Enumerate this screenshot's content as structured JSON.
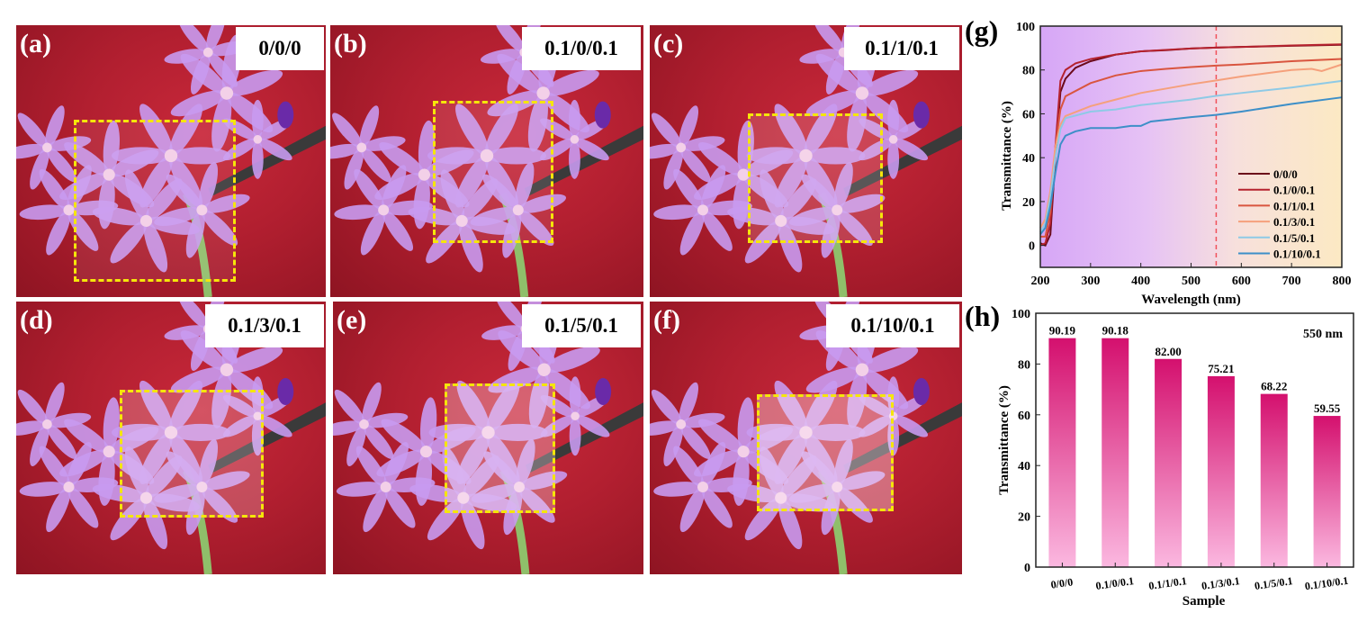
{
  "panels": [
    {
      "label": "(a)",
      "sample": "0/0/0",
      "film_opacity": 0.08
    },
    {
      "label": "(b)",
      "sample": "0.1/0/0.1",
      "film_opacity": 0.1
    },
    {
      "label": "(c)",
      "sample": "0.1/1/0.1",
      "film_opacity": 0.16
    },
    {
      "label": "(d)",
      "sample": "0.1/3/0.1",
      "film_opacity": 0.22
    },
    {
      "label": "(e)",
      "sample": "0.1/5/0.1",
      "film_opacity": 0.3
    },
    {
      "label": "(f)",
      "sample": "0.1/10/0.1",
      "film_opacity": 0.38
    }
  ],
  "colors": {
    "dashed_box": "#f5e60a",
    "reference_line": "#f0505a",
    "bar_top": "#d4106e",
    "bar_bottom": "#fbb8e0"
  },
  "chart_data": [
    {
      "panel_label": "(g)",
      "type": "line",
      "xlabel": "Wavelength (nm)",
      "ylabel": "Transmittance (%)",
      "xlim": [
        200,
        800
      ],
      "ylim": [
        -10,
        100
      ],
      "xticks": [
        200,
        300,
        400,
        500,
        600,
        700,
        800
      ],
      "yticks": [
        0,
        20,
        40,
        60,
        80,
        100
      ],
      "reference_line_x": 550,
      "legend_position": "bottom-right",
      "background": "purple-to-yellow gradient",
      "series": [
        {
          "name": "0/0/0",
          "color": "#6b0a1a",
          "points": [
            [
              200,
              1
            ],
            [
              210,
              0
            ],
            [
              220,
              5
            ],
            [
              230,
              40
            ],
            [
              240,
              70
            ],
            [
              250,
              76
            ],
            [
              270,
              81
            ],
            [
              300,
              84
            ],
            [
              350,
              87
            ],
            [
              400,
              88.5
            ],
            [
              450,
              89
            ],
            [
              500,
              89.8
            ],
            [
              550,
              90.2
            ],
            [
              600,
              90.5
            ],
            [
              700,
              91
            ],
            [
              800,
              91.5
            ]
          ]
        },
        {
          "name": "0.1/0/0.1",
          "color": "#b5222e",
          "points": [
            [
              200,
              0
            ],
            [
              210,
              1
            ],
            [
              220,
              10
            ],
            [
              230,
              45
            ],
            [
              240,
              75
            ],
            [
              250,
              80
            ],
            [
              270,
              83
            ],
            [
              300,
              85
            ],
            [
              350,
              87
            ],
            [
              400,
              88.5
            ],
            [
              500,
              89.8
            ],
            [
              550,
              90.2
            ],
            [
              600,
              90.5
            ],
            [
              700,
              91.2
            ],
            [
              800,
              91.7
            ]
          ]
        },
        {
          "name": "0.1/1/0.1",
          "color": "#d9553f",
          "points": [
            [
              200,
              4
            ],
            [
              210,
              4
            ],
            [
              220,
              15
            ],
            [
              230,
              45
            ],
            [
              240,
              62
            ],
            [
              250,
              68
            ],
            [
              300,
              74
            ],
            [
              350,
              77.5
            ],
            [
              400,
              79.5
            ],
            [
              450,
              80.5
            ],
            [
              500,
              81.3
            ],
            [
              550,
              82
            ],
            [
              600,
              82.5
            ],
            [
              700,
              84
            ],
            [
              800,
              85
            ]
          ]
        },
        {
          "name": "0.1/3/0.1",
          "color": "#f5a07c",
          "points": [
            [
              200,
              8
            ],
            [
              210,
              12
            ],
            [
              220,
              25
            ],
            [
              230,
              45
            ],
            [
              240,
              55
            ],
            [
              250,
              59
            ],
            [
              300,
              63.5
            ],
            [
              350,
              66.5
            ],
            [
              400,
              69.5
            ],
            [
              450,
              71.5
            ],
            [
              500,
              73.5
            ],
            [
              550,
              75.2
            ],
            [
              600,
              77
            ],
            [
              650,
              78.5
            ],
            [
              700,
              80
            ],
            [
              740,
              80.5
            ],
            [
              760,
              79.5
            ],
            [
              800,
              82.5
            ]
          ]
        },
        {
          "name": "0.1/5/0.1",
          "color": "#8ecae6",
          "points": [
            [
              200,
              6
            ],
            [
              210,
              10
            ],
            [
              220,
              22
            ],
            [
              230,
              40
            ],
            [
              240,
              53
            ],
            [
              250,
              58
            ],
            [
              300,
              61
            ],
            [
              350,
              62
            ],
            [
              400,
              64
            ],
            [
              500,
              66.5
            ],
            [
              550,
              68.2
            ],
            [
              600,
              69.5
            ],
            [
              700,
              72
            ],
            [
              800,
              75
            ]
          ]
        },
        {
          "name": "0.1/10/0.1",
          "color": "#3d8fc8",
          "points": [
            [
              200,
              5
            ],
            [
              210,
              8
            ],
            [
              220,
              18
            ],
            [
              230,
              33
            ],
            [
              240,
              46
            ],
            [
              250,
              50
            ],
            [
              270,
              52
            ],
            [
              300,
              53.5
            ],
            [
              350,
              53.5
            ],
            [
              380,
              54.5
            ],
            [
              400,
              54.5
            ],
            [
              420,
              56.5
            ],
            [
              500,
              58.5
            ],
            [
              550,
              59.5
            ],
            [
              600,
              61
            ],
            [
              700,
              64.5
            ],
            [
              800,
              67.5
            ]
          ]
        }
      ]
    },
    {
      "panel_label": "(h)",
      "type": "bar",
      "xlabel": "Sample",
      "ylabel": "Transmittance (%)",
      "annotation": "550 nm",
      "ylim": [
        0,
        100
      ],
      "yticks": [
        0,
        20,
        40,
        60,
        80,
        100
      ],
      "categories": [
        "0/0/0",
        "0.1/0/0.1",
        "0.1/1/0.1",
        "0.1/3/0.1",
        "0.1/5/0.1",
        "0.1/10/0.1"
      ],
      "values": [
        90.19,
        90.18,
        82.0,
        75.21,
        68.22,
        59.55
      ],
      "value_labels": [
        "90.19",
        "90.18",
        "82.00",
        "75.21",
        "68.22",
        "59.55"
      ]
    }
  ]
}
